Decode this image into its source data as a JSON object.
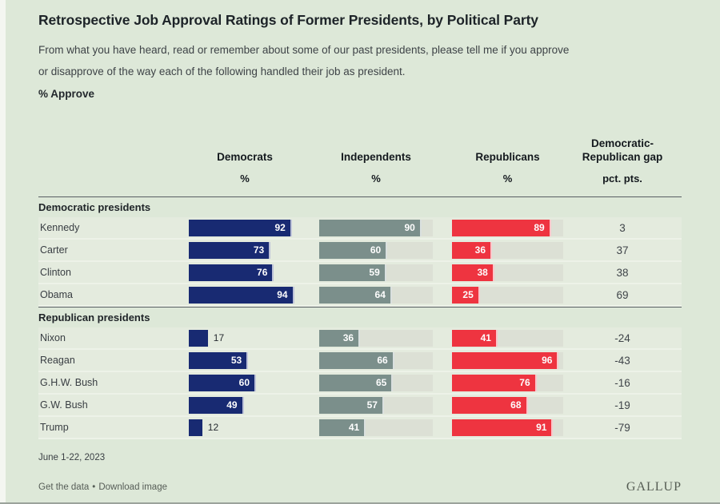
{
  "chart_data": {
    "type": "bar",
    "title": "Retrospective Job Approval Ratings of Former Presidents, by Political Party",
    "subtitle": "From what you have heard, read or remember about some of our past presidents, please tell me if you approve\nor disapprove of the way each of the following handled their job as president.",
    "measure_label": "% Approve",
    "date_note": "June 1-22, 2023",
    "xlabel": "",
    "ylabel": "",
    "scale": {
      "min": 0,
      "max": 100
    },
    "legend_position": "none",
    "value_labels": "at-bar-end",
    "columns": [
      {
        "label": "Democrats",
        "unit": "%"
      },
      {
        "label": "Independents",
        "unit": "%"
      },
      {
        "label": "Republicans",
        "unit": "%"
      },
      {
        "label": "Democratic-Republican gap",
        "unit": "pct. pts."
      }
    ],
    "sections": [
      {
        "label": "Democratic presidents",
        "rows": [
          {
            "president": "Kennedy",
            "democrats": 92,
            "independents": 90,
            "republicans": 89,
            "gap": 3
          },
          {
            "president": "Carter",
            "democrats": 73,
            "independents": 60,
            "republicans": 36,
            "gap": 37
          },
          {
            "president": "Clinton",
            "democrats": 76,
            "independents": 59,
            "republicans": 38,
            "gap": 38
          },
          {
            "president": "Obama",
            "democrats": 94,
            "independents": 64,
            "republicans": 25,
            "gap": 69
          }
        ]
      },
      {
        "label": "Republican presidents",
        "rows": [
          {
            "president": "Nixon",
            "democrats": 17,
            "independents": 36,
            "republicans": 41,
            "gap": -24
          },
          {
            "president": "Reagan",
            "democrats": 53,
            "independents": 66,
            "republicans": 96,
            "gap": -43
          },
          {
            "president": "G.H.W. Bush",
            "democrats": 60,
            "independents": 65,
            "republicans": 76,
            "gap": -16
          },
          {
            "president": "G.W. Bush",
            "democrats": 49,
            "independents": 57,
            "republicans": 68,
            "gap": -19
          },
          {
            "president": "Trump",
            "democrats": 12,
            "independents": 41,
            "republicans": 91,
            "gap": -79
          }
        ]
      }
    ],
    "colors": {
      "democrats": "#182a72",
      "independents": "#7b8f8b",
      "republicans": "#ee3440",
      "track": "#dce0d5",
      "background": "#dde8d8"
    }
  },
  "page": {
    "footer": {
      "get_data": "Get the data",
      "separator": "•",
      "download_image": "Download image",
      "brand": "GALLUP"
    }
  }
}
